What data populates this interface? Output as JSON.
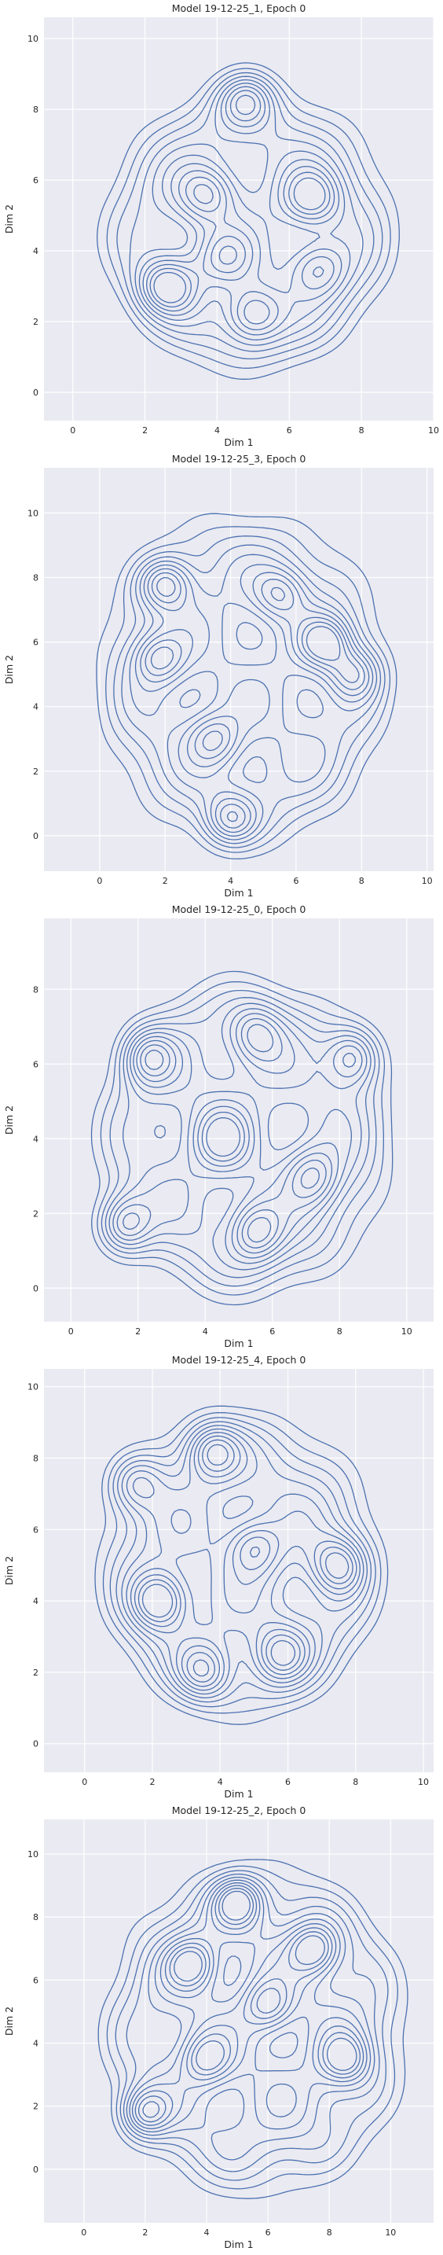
{
  "figure": {
    "panels_count_text": "5"
  },
  "chart_data": [
    {
      "type": "contour",
      "title": "Model 19-12-25_1, Epoch 0",
      "xlabel": "Dim 1",
      "ylabel": "Dim 2",
      "xlim": [
        -0.8,
        10
      ],
      "ylim": [
        -0.8,
        10.6
      ],
      "xticks": [
        0,
        2,
        4,
        6,
        8,
        10
      ],
      "yticks": [
        0,
        2,
        4,
        6,
        8,
        10
      ],
      "grid": true,
      "line_color": "#4c72b0",
      "background": "#eaeaf2",
      "levels": 10,
      "centers": [
        {
          "x": 4.8,
          "y": 8.3,
          "w": 1.0
        },
        {
          "x": 2.6,
          "y": 3.0,
          "w": 1.1
        },
        {
          "x": 5.0,
          "y": 2.2,
          "w": 0.9
        },
        {
          "x": 6.6,
          "y": 5.5,
          "w": 0.9
        },
        {
          "x": 3.7,
          "y": 5.6,
          "w": 0.8
        },
        {
          "x": 6.8,
          "y": 3.5,
          "w": 0.7
        },
        {
          "x": 4.2,
          "y": 3.8,
          "w": 0.6
        }
      ],
      "envelope": {
        "cx": 4.9,
        "cy": 4.6,
        "rx": 3.9,
        "ry": 3.9
      }
    },
    {
      "type": "contour",
      "title": "Model 19-12-25_3, Epoch 0",
      "xlabel": "Dim 1",
      "ylabel": "Dim 2",
      "xlim": [
        -1.7,
        10.2
      ],
      "ylim": [
        -1.1,
        11.4
      ],
      "xticks": [
        0,
        2,
        4,
        6,
        8,
        10
      ],
      "yticks": [
        0,
        2,
        4,
        6,
        8,
        10
      ],
      "grid": true,
      "line_color": "#4c72b0",
      "background": "#eaeaf2",
      "levels": 10,
      "centers": [
        {
          "x": 2.0,
          "y": 7.8,
          "w": 1.0
        },
        {
          "x": 6.9,
          "y": 6.0,
          "w": 1.0
        },
        {
          "x": 7.8,
          "y": 5.0,
          "w": 0.8
        },
        {
          "x": 4.0,
          "y": 0.5,
          "w": 0.9
        },
        {
          "x": 1.8,
          "y": 5.5,
          "w": 0.8
        },
        {
          "x": 3.5,
          "y": 3.0,
          "w": 0.7
        },
        {
          "x": 5.5,
          "y": 7.5,
          "w": 0.7
        }
      ],
      "envelope": {
        "cx": 4.4,
        "cy": 4.8,
        "rx": 4.3,
        "ry": 5.0
      }
    },
    {
      "type": "contour",
      "title": "Model 19-12-25_0, Epoch 0",
      "xlabel": "Dim 1",
      "ylabel": "Dim 2",
      "xlim": [
        -0.8,
        10.8
      ],
      "ylim": [
        -0.9,
        9.9
      ],
      "xticks": [
        0,
        2,
        4,
        6,
        8,
        10
      ],
      "yticks": [
        0,
        2,
        4,
        6,
        8
      ],
      "grid": true,
      "line_color": "#4c72b0",
      "background": "#eaeaf2",
      "levels": 10,
      "centers": [
        {
          "x": 1.6,
          "y": 1.7,
          "w": 1.0
        },
        {
          "x": 2.3,
          "y": 6.2,
          "w": 0.9
        },
        {
          "x": 8.4,
          "y": 6.2,
          "w": 0.9
        },
        {
          "x": 5.5,
          "y": 1.5,
          "w": 0.8
        },
        {
          "x": 4.5,
          "y": 4.0,
          "w": 0.7
        },
        {
          "x": 7.2,
          "y": 3.0,
          "w": 0.7
        },
        {
          "x": 5.5,
          "y": 6.8,
          "w": 0.7
        }
      ],
      "envelope": {
        "cx": 5.2,
        "cy": 4.0,
        "rx": 4.2,
        "ry": 4.1
      }
    },
    {
      "type": "contour",
      "title": "Model 19-12-25_4, Epoch 0",
      "xlabel": "Dim 1",
      "ylabel": "Dim 2",
      "xlim": [
        -1.2,
        10.3
      ],
      "ylim": [
        -0.8,
        10.5
      ],
      "xticks": [
        0,
        2,
        4,
        6,
        8,
        10
      ],
      "yticks": [
        0,
        2,
        4,
        6,
        8,
        10
      ],
      "grid": true,
      "line_color": "#4c72b0",
      "background": "#eaeaf2",
      "levels": 10,
      "centers": [
        {
          "x": 2.2,
          "y": 4.0,
          "w": 1.1
        },
        {
          "x": 3.8,
          "y": 8.2,
          "w": 0.9
        },
        {
          "x": 7.5,
          "y": 5.0,
          "w": 0.9
        },
        {
          "x": 3.5,
          "y": 2.0,
          "w": 0.8
        },
        {
          "x": 5.8,
          "y": 2.5,
          "w": 0.8
        },
        {
          "x": 5.0,
          "y": 5.5,
          "w": 0.7
        },
        {
          "x": 1.5,
          "y": 7.3,
          "w": 0.7
        }
      ],
      "envelope": {
        "cx": 4.6,
        "cy": 5.0,
        "rx": 4.0,
        "ry": 4.1
      }
    },
    {
      "type": "contour",
      "title": "Model 19-12-25_2, Epoch 0",
      "xlabel": "Dim 1",
      "ylabel": "Dim 2",
      "xlim": [
        -1.3,
        11.4
      ],
      "ylim": [
        -1.7,
        11.1
      ],
      "xticks": [
        0,
        2,
        4,
        6,
        8,
        10
      ],
      "yticks": [
        0,
        2,
        4,
        6,
        8,
        10
      ],
      "grid": true,
      "line_color": "#4c72b0",
      "background": "#eaeaf2",
      "levels": 10,
      "centers": [
        {
          "x": 2.0,
          "y": 1.8,
          "w": 1.0
        },
        {
          "x": 5.0,
          "y": 8.5,
          "w": 1.0
        },
        {
          "x": 7.5,
          "y": 7.0,
          "w": 0.9
        },
        {
          "x": 3.5,
          "y": 6.5,
          "w": 0.8
        },
        {
          "x": 8.5,
          "y": 3.5,
          "w": 0.8
        },
        {
          "x": 6.0,
          "y": 5.2,
          "w": 0.7
        },
        {
          "x": 4.0,
          "y": 3.5,
          "w": 0.7
        }
      ],
      "envelope": {
        "cx": 5.6,
        "cy": 4.4,
        "rx": 4.7,
        "ry": 5.0
      }
    }
  ]
}
